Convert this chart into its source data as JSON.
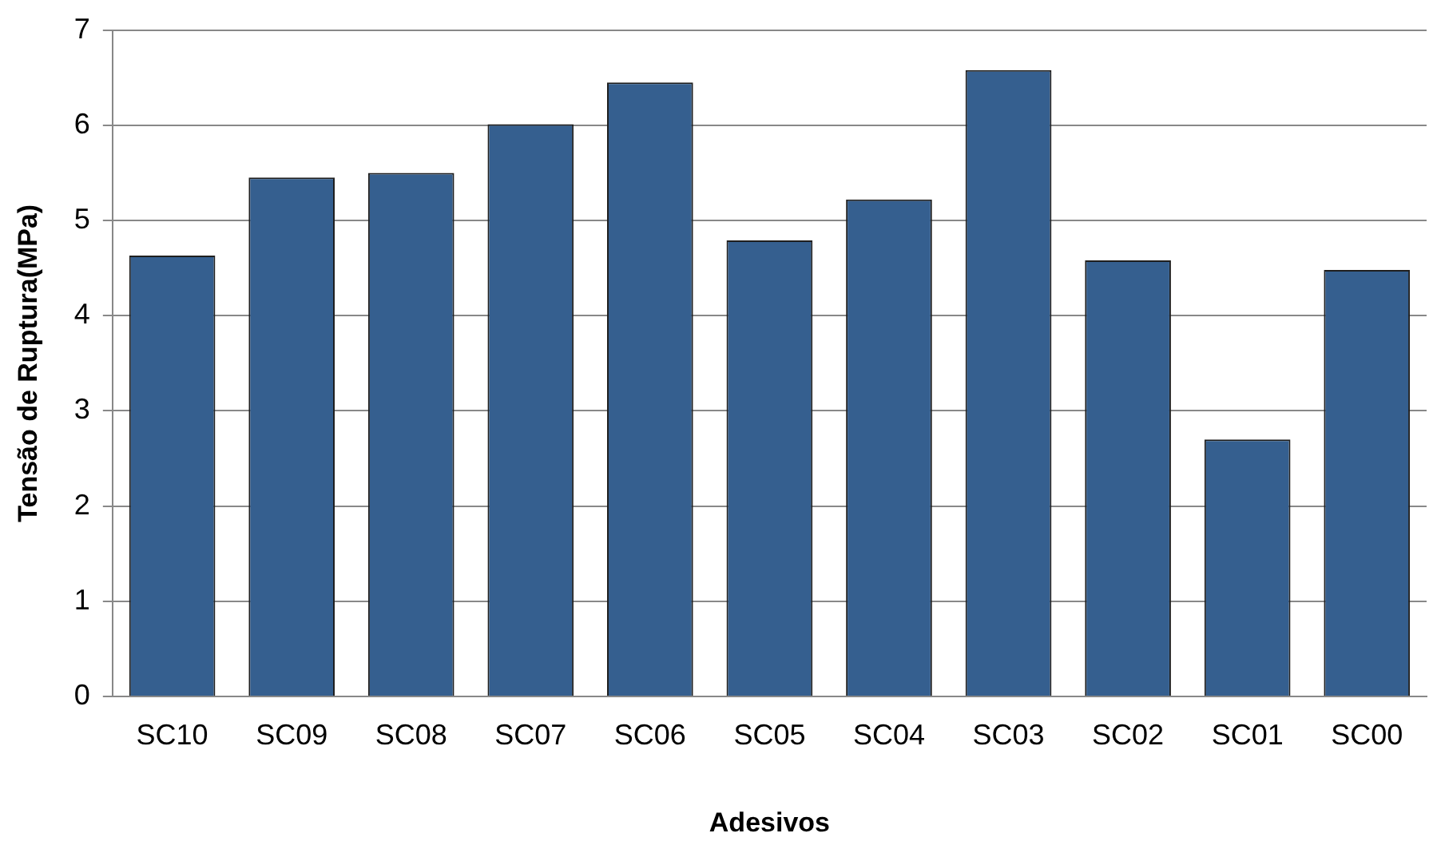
{
  "chart_data": {
    "type": "bar",
    "xlabel": "Adesivos",
    "ylabel": "Tensão de Ruptura(MPa)",
    "categories": [
      "SC10",
      "SC09",
      "SC08",
      "SC07",
      "SC06",
      "SC05",
      "SC04",
      "SC03",
      "SC02",
      "SC01",
      "SC00"
    ],
    "values": [
      4.63,
      5.45,
      5.5,
      6.01,
      6.45,
      4.79,
      5.22,
      6.58,
      4.58,
      2.7,
      4.48
    ],
    "color": "#355f8f",
    "ylim": [
      0,
      7
    ],
    "yticks": [
      0,
      1,
      2,
      3,
      4,
      5,
      6,
      7
    ],
    "grid": "y",
    "legend": false
  }
}
